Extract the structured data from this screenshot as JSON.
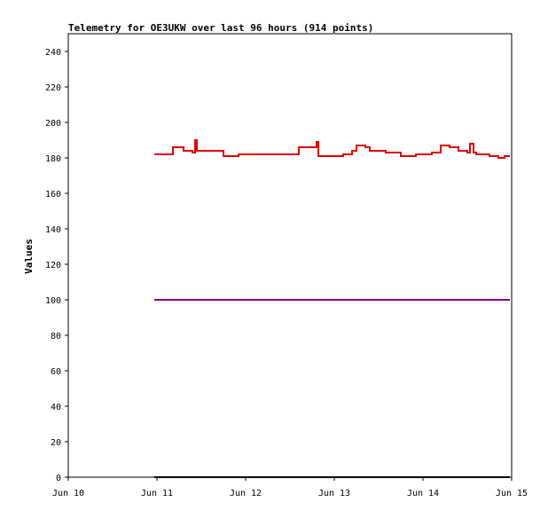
{
  "chart_data": {
    "type": "line",
    "title": "Telemetry for OE3UKW over last 96 hours (914 points)",
    "xlabel": "",
    "ylabel": "Values",
    "xlim": [
      0,
      5
    ],
    "ylim": [
      0,
      250
    ],
    "x_ticks": [
      {
        "v": 0,
        "label": "Jun 10"
      },
      {
        "v": 1,
        "label": "Jun 11"
      },
      {
        "v": 2,
        "label": "Jun 12"
      },
      {
        "v": 3,
        "label": "Jun 13"
      },
      {
        "v": 4,
        "label": "Jun 14"
      },
      {
        "v": 5,
        "label": "Jun 15"
      }
    ],
    "y_ticks": [
      0,
      20,
      40,
      60,
      80,
      100,
      120,
      140,
      160,
      180,
      200,
      220,
      240
    ],
    "grid": false,
    "legend": "none",
    "series": [
      {
        "color": "#e00000",
        "x": [
          0.97,
          1.13,
          1.18,
          1.3,
          1.4,
          1.43,
          1.45,
          1.47,
          1.5,
          1.65,
          1.75,
          1.92,
          2.6,
          2.8,
          2.82,
          2.92,
          3.1,
          3.2,
          3.25,
          3.35,
          3.4,
          3.58,
          3.75,
          3.92,
          4.1,
          4.2,
          4.3,
          4.4,
          4.5,
          4.53,
          4.55,
          4.57,
          4.6,
          4.75,
          4.85,
          4.92,
          4.98
        ],
        "y": [
          182,
          182,
          186,
          184,
          183,
          190,
          184,
          184,
          184,
          184,
          181,
          182,
          186,
          189,
          181,
          181,
          182,
          184,
          187,
          186,
          184,
          183,
          181,
          182,
          183,
          187,
          186,
          184,
          183,
          188,
          188,
          183,
          182,
          181,
          180,
          181,
          181
        ]
      },
      {
        "color": "#800080",
        "x": [
          0.97,
          4.98
        ],
        "y": [
          100,
          100
        ]
      },
      {
        "color": "#000000",
        "x": [
          0.97,
          4.98
        ],
        "y": [
          0,
          0
        ]
      }
    ]
  }
}
